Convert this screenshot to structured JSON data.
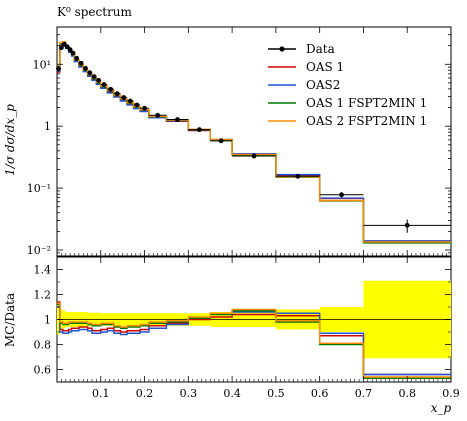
{
  "chart_data": [
    {
      "panel": "main",
      "type": "line",
      "title": "K⁰ spectrum",
      "ylabel": "1/σ dσ/dx_p",
      "xlabel": "x_p",
      "yscale": "log",
      "xlim": [
        0.0,
        0.9
      ],
      "ylim": [
        0.008,
        40
      ],
      "ytick_labels": [
        "10⁻²",
        "10⁻¹",
        "1",
        "10¹"
      ],
      "ytick_values": [
        0.01,
        0.1,
        1,
        10
      ],
      "legend_position": "top-right",
      "legend": [
        "Data",
        "OAS 1",
        "OAS2",
        "OAS 1 FSPT2MIN 1",
        "OAS 2 FSPT2MIN 1"
      ],
      "bin_edges": [
        0.0,
        0.0066,
        0.0133,
        0.02,
        0.0266,
        0.0333,
        0.04,
        0.05,
        0.06,
        0.07,
        0.08,
        0.09,
        0.1,
        0.115,
        0.13,
        0.145,
        0.16,
        0.175,
        0.19,
        0.21,
        0.25,
        0.3,
        0.35,
        0.4,
        0.5,
        0.6,
        0.7,
        0.9
      ],
      "data": {
        "name": "Data",
        "color": "#000000",
        "x": [
          0.0033,
          0.01,
          0.0166,
          0.0233,
          0.03,
          0.0366,
          0.045,
          0.055,
          0.065,
          0.075,
          0.085,
          0.095,
          0.1075,
          0.1225,
          0.1375,
          0.1525,
          0.1675,
          0.1825,
          0.2,
          0.23,
          0.275,
          0.325,
          0.375,
          0.45,
          0.55,
          0.65,
          0.8
        ],
        "y": [
          8.5,
          18.5,
          21.0,
          19.2,
          17.2,
          15.2,
          12.5,
          10.4,
          8.6,
          7.3,
          6.3,
          5.5,
          4.7,
          3.95,
          3.35,
          2.9,
          2.55,
          2.2,
          1.95,
          1.5,
          1.28,
          0.88,
          0.58,
          0.33,
          0.155,
          0.078,
          0.025
        ],
        "yerr": [
          1.0,
          1.5,
          1.5,
          1.2,
          1.0,
          0.9,
          0.7,
          0.6,
          0.5,
          0.4,
          0.35,
          0.3,
          0.25,
          0.2,
          0.18,
          0.15,
          0.13,
          0.11,
          0.1,
          0.08,
          0.07,
          0.05,
          0.04,
          0.02,
          0.012,
          0.008,
          0.006
        ]
      },
      "series": [
        {
          "name": "OAS 1",
          "color": "#d40000",
          "values": [
            7.5,
            20.0,
            22.0,
            18.5,
            16.0,
            14.0,
            11.3,
            9.3,
            7.8,
            6.6,
            5.7,
            4.9,
            4.2,
            3.55,
            3.0,
            2.6,
            2.25,
            1.95,
            1.75,
            1.38,
            1.2,
            0.85,
            0.6,
            0.35,
            0.16,
            0.068,
            0.014
          ]
        },
        {
          "name": "OAS2",
          "color": "#1f55d6",
          "values": [
            7.8,
            21.0,
            22.5,
            18.0,
            15.6,
            13.6,
            11.0,
            9.0,
            7.6,
            6.4,
            5.5,
            4.75,
            4.1,
            3.45,
            2.95,
            2.55,
            2.2,
            1.92,
            1.72,
            1.37,
            1.22,
            0.87,
            0.61,
            0.36,
            0.165,
            0.069,
            0.014
          ]
        },
        {
          "name": "OAS 1 FSPT2MIN 1",
          "color": "#007a00",
          "values": [
            8.2,
            22.0,
            23.0,
            19.0,
            16.5,
            14.5,
            11.7,
            9.6,
            8.0,
            6.8,
            5.85,
            5.05,
            4.35,
            3.7,
            3.12,
            2.7,
            2.35,
            2.03,
            1.82,
            1.42,
            1.25,
            0.88,
            0.6,
            0.345,
            0.15,
            0.062,
            0.013
          ]
        },
        {
          "name": "OAS 2 FSPT2MIN 1",
          "color": "#ff8c00",
          "values": [
            8.4,
            22.5,
            23.2,
            19.3,
            16.8,
            14.8,
            11.9,
            9.8,
            8.15,
            6.9,
            5.95,
            5.15,
            4.45,
            3.78,
            3.18,
            2.75,
            2.4,
            2.07,
            1.85,
            1.44,
            1.26,
            0.89,
            0.61,
            0.35,
            0.152,
            0.063,
            0.0135
          ]
        }
      ]
    },
    {
      "panel": "ratio",
      "type": "line",
      "ylabel": "MC/Data",
      "xlabel": "x_p",
      "xlim": [
        0.0,
        0.9
      ],
      "ylim": [
        0.5,
        1.5
      ],
      "ytick_labels": [
        "0.6",
        "0.8",
        "1",
        "1.2",
        "1.4"
      ],
      "ytick_values": [
        0.6,
        0.8,
        1.0,
        1.2,
        1.4
      ],
      "xtick_labels": [
        "0.1",
        "0.2",
        "0.3",
        "0.4",
        "0.5",
        "0.6",
        "0.7",
        "0.8",
        "0.9"
      ],
      "xtick_values": [
        0.1,
        0.2,
        0.3,
        0.4,
        0.5,
        0.6,
        0.7,
        0.8,
        0.9
      ],
      "band_color": "#ffff00",
      "band_halfwidth": [
        0.12,
        0.08,
        0.07,
        0.06,
        0.06,
        0.06,
        0.06,
        0.06,
        0.06,
        0.055,
        0.055,
        0.055,
        0.05,
        0.05,
        0.05,
        0.05,
        0.05,
        0.05,
        0.05,
        0.05,
        0.05,
        0.05,
        0.06,
        0.06,
        0.08,
        0.1,
        0.31
      ],
      "series": [
        {
          "name": "OAS 1",
          "color": "#d40000",
          "values": [
            1.14,
            0.92,
            0.91,
            0.91,
            0.92,
            0.93,
            0.93,
            0.94,
            0.94,
            0.93,
            0.91,
            0.91,
            0.92,
            0.93,
            0.91,
            0.9,
            0.91,
            0.91,
            0.92,
            0.95,
            0.97,
            1.0,
            1.02,
            1.04,
            1.03,
            0.87,
            0.56
          ]
        },
        {
          "name": "OAS2",
          "color": "#1f55d6",
          "values": [
            1.1,
            0.9,
            0.89,
            0.89,
            0.9,
            0.91,
            0.91,
            0.92,
            0.92,
            0.91,
            0.89,
            0.89,
            0.9,
            0.91,
            0.89,
            0.88,
            0.89,
            0.89,
            0.9,
            0.93,
            0.96,
            1.01,
            1.05,
            1.06,
            1.05,
            0.89,
            0.56
          ]
        },
        {
          "name": "OAS 1 FSPT2MIN 1",
          "color": "#007a00",
          "values": [
            1.12,
            0.97,
            0.96,
            0.96,
            0.97,
            0.97,
            0.97,
            0.97,
            0.97,
            0.96,
            0.95,
            0.95,
            0.96,
            0.96,
            0.94,
            0.93,
            0.94,
            0.94,
            0.95,
            0.97,
            0.98,
            1.01,
            1.04,
            1.07,
            0.98,
            0.8,
            0.53
          ]
        },
        {
          "name": "OAS 2 FSPT2MIN 1",
          "color": "#ff8c00",
          "values": [
            1.13,
            0.98,
            0.97,
            0.97,
            0.98,
            0.98,
            0.98,
            0.98,
            0.98,
            0.97,
            0.96,
            0.96,
            0.97,
            0.97,
            0.95,
            0.94,
            0.95,
            0.95,
            0.96,
            0.98,
            0.99,
            1.02,
            1.05,
            1.08,
            0.99,
            0.81,
            0.54
          ]
        }
      ]
    }
  ]
}
